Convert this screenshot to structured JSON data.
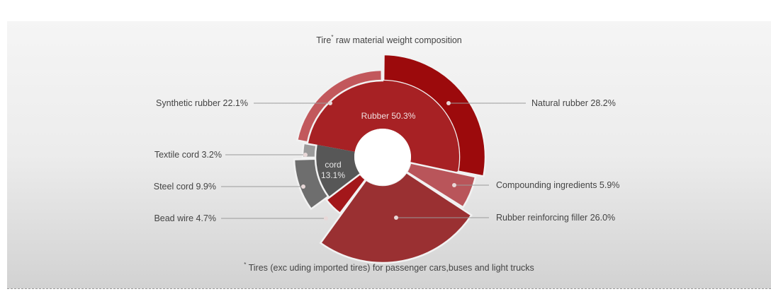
{
  "chart_data": {
    "type": "sunburst",
    "title": "Tire* raw material weight composition",
    "title_main": "Tire",
    "title_marker": "*",
    "title_rest": " raw material weight composition",
    "footnote_marker": "*",
    "footnote": "Tires (exc uding imported tires) for passenger cars,buses and light trucks",
    "inner_ring": [
      {
        "name": "Rubber",
        "value": 50.3,
        "label": "Rubber 50.3%",
        "color": "#a72124"
      },
      {
        "name": "cord",
        "value": 13.1,
        "label_line1": "cord",
        "label_line2": "13.1%",
        "color": "#575757"
      }
    ],
    "outer_ring": [
      {
        "name": "Natural rubber",
        "value": 28.2,
        "label": "Natural rubber 28.2%",
        "color": "#9c0a0c",
        "parent": "Rubber"
      },
      {
        "name": "Compounding ingredients",
        "value": 5.9,
        "label": "Compounding ingredients 5.9%",
        "color": "#b9555a",
        "parent": null
      },
      {
        "name": "Rubber reinforcing filler",
        "value": 26.0,
        "label": "Rubber reinforcing filler 26.0%",
        "color": "#9a3032",
        "parent": null
      },
      {
        "name": "Bead wire",
        "value": 4.7,
        "label": "Bead wire 4.7%",
        "color": "#a3171a",
        "parent": null
      },
      {
        "name": "Steel cord",
        "value": 9.9,
        "label": "Steel cord 9.9%",
        "color": "#6e6e6e",
        "parent": "cord"
      },
      {
        "name": "Textile cord",
        "value": 3.2,
        "label": "Textile cord 3.2%",
        "color": "#9b9b9b",
        "parent": "cord"
      },
      {
        "name": "Synthetic rubber",
        "value": 22.1,
        "label": "Synthetic rubber 22.1%",
        "color": "#c2585c",
        "parent": "Rubber"
      }
    ],
    "legend_position": "callout labels"
  }
}
